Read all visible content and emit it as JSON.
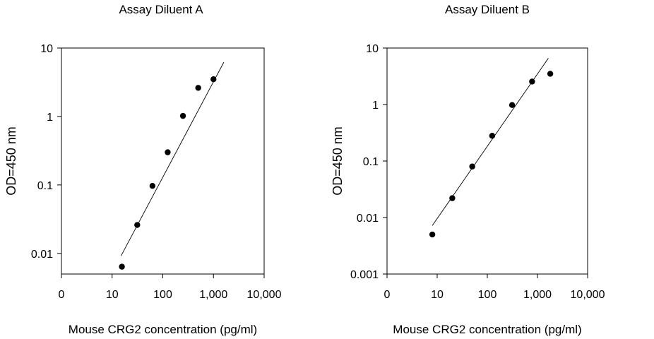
{
  "chart_data": [
    {
      "type": "scatter",
      "title": "Assay Diluent A",
      "xlabel": "Mouse CRG2 concentration (pg/ml)",
      "ylabel": "OD=450 nm",
      "xscale": "log",
      "yscale": "log",
      "xlim": [
        1,
        10000
      ],
      "ylim": [
        0.005,
        10
      ],
      "xticks": [
        1,
        10,
        100,
        1000,
        10000
      ],
      "xtick_labels": [
        "0",
        "10",
        "100",
        "1,000",
        "10,000"
      ],
      "yticks": [
        0.01,
        0.1,
        1,
        10
      ],
      "ytick_labels": [
        "0.01",
        "0.1",
        "1",
        "10"
      ],
      "grid": false,
      "series": [
        {
          "x": [
            15.6,
            31.3,
            62.5,
            125,
            250,
            500,
            1000
          ],
          "y": [
            0.0064,
            0.026,
            0.097,
            0.3,
            1.02,
            2.62,
            3.5
          ]
        }
      ],
      "fit_line": {
        "x": [
          15,
          1600
        ],
        "y": [
          0.0092,
          6.2
        ]
      }
    },
    {
      "type": "scatter",
      "title": "Assay Diluent B",
      "xlabel": "Mouse CRG2 concentration (pg/ml)",
      "ylabel": "OD=450 nm",
      "xscale": "log",
      "yscale": "log",
      "xlim": [
        1,
        10000
      ],
      "ylim": [
        0.001,
        10
      ],
      "xticks": [
        1,
        10,
        100,
        1000,
        10000
      ],
      "xtick_labels": [
        "0",
        "10",
        "100",
        "1,000",
        "10,000"
      ],
      "yticks": [
        0.001,
        0.01,
        0.1,
        1,
        10
      ],
      "ytick_labels": [
        "0.001",
        "0.01",
        "0.1",
        "1",
        "10"
      ],
      "grid": false,
      "series": [
        {
          "x": [
            8,
            20,
            50,
            125,
            312,
            780,
            1800
          ],
          "y": [
            0.005,
            0.022,
            0.08,
            0.28,
            0.98,
            2.55,
            3.5
          ]
        }
      ],
      "fit_line": {
        "x": [
          8,
          1650
        ],
        "y": [
          0.0072,
          6.6
        ]
      }
    }
  ]
}
